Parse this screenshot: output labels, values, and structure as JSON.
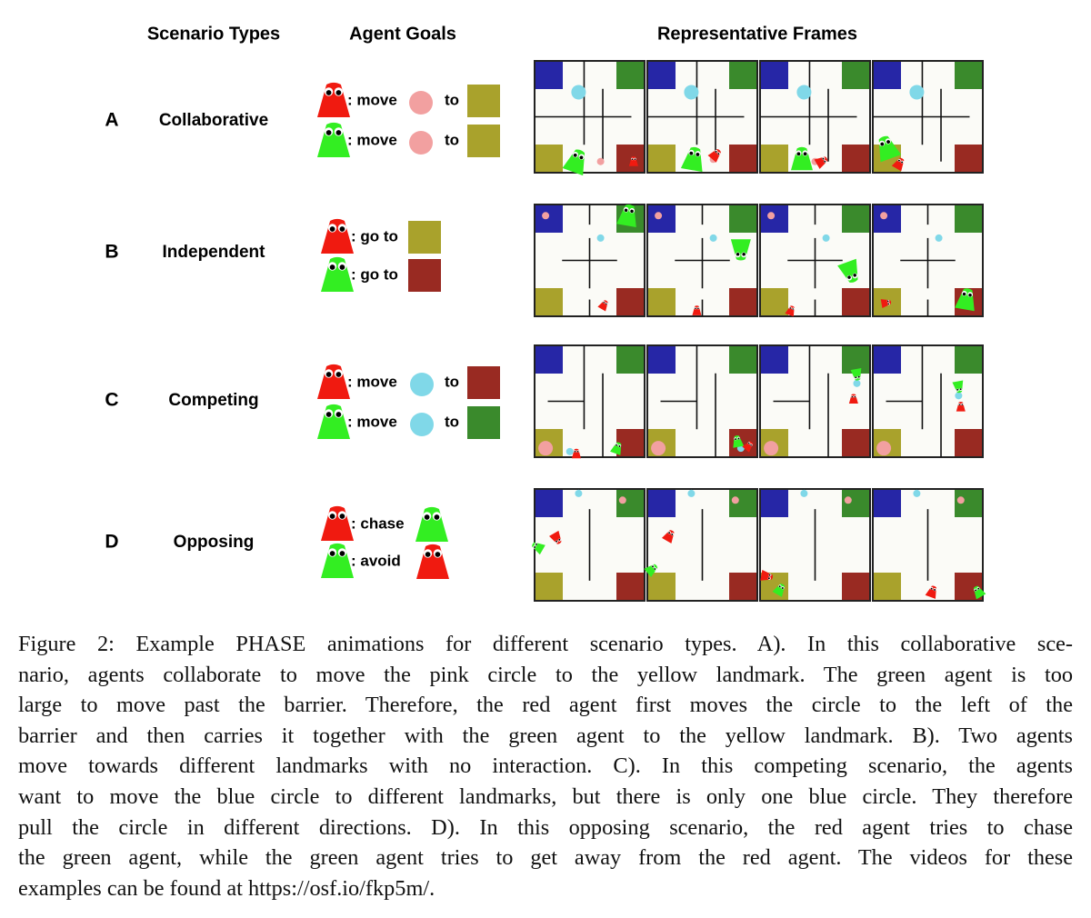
{
  "header": {
    "columns": [
      "Scenario Types",
      "Agent Goals",
      "Representative Frames"
    ]
  },
  "rows": [
    {
      "letter": "A",
      "scenario": "Collaborative",
      "goals": [
        {
          "verb": ": move",
          "to": "to"
        },
        {
          "verb": ": move",
          "to": "to"
        }
      ]
    },
    {
      "letter": "B",
      "scenario": "Independent",
      "goals": [
        {
          "verb": ": go to"
        },
        {
          "verb": ": go to"
        }
      ]
    },
    {
      "letter": "C",
      "scenario": "Competing",
      "goals": [
        {
          "verb": ": move",
          "to": "to"
        },
        {
          "verb": ": move",
          "to": "to"
        }
      ]
    },
    {
      "letter": "D",
      "scenario": "Opposing",
      "goals": [
        {
          "verb": ": chase"
        },
        {
          "verb": ": avoid"
        }
      ]
    }
  ],
  "caption": {
    "lines": [
      "Figure 2: Example PHASE animations for different scenario types. A). In this collaborative sce-",
      "nario, agents collaborate to move the pink circle to the yellow landmark. The green agent is too",
      "large to move past the barrier. Therefore, the red agent first moves the circle to the left of the",
      "barrier and then carries it together with the green agent to the yellow landmark. B). Two agents",
      "move towards different landmarks with no interaction. C). In this competing scenario, the agents",
      "want to move the blue circle to different landmarks, but there is only one blue circle. They therefore",
      "pull the circle in different directions. D). In this opposing scenario, the red agent tries to chase",
      "the green agent, while the green agent tries to get away from the red agent. The videos for these",
      "examples can be found at https://osf.io/fkp5m/."
    ]
  }
}
